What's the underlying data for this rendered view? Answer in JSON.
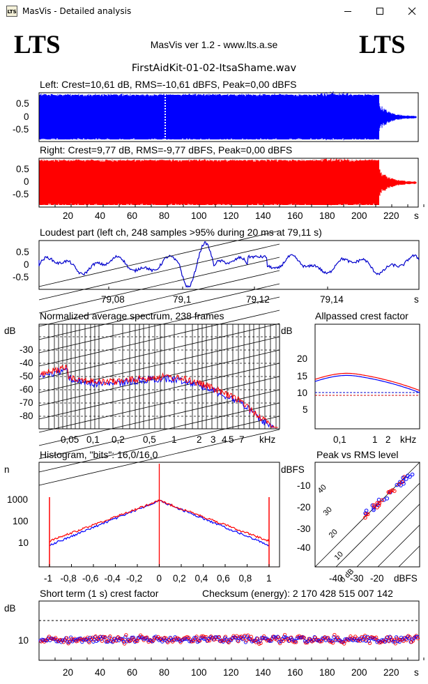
{
  "window": {
    "title": "MasVis - Detailed analysis",
    "minimize_glyph": "minimize-icon",
    "maximize_glyph": "maximize-icon",
    "close_glyph": "close-icon"
  },
  "header": {
    "logo_left": "LTS",
    "logo_right": "LTS",
    "version": "MasVis ver 1.2 - www.lts.a.se",
    "filename": "FirstAidKit-01-02-ItsaShame.wav"
  },
  "waveform_left": {
    "label": "Left: Crest=10,61 dB, RMS=-10,61 dBFS, Peak=0,00 dBFS",
    "color": "#0000ff",
    "yticks": [
      "0.5",
      "0",
      "-0.5"
    ]
  },
  "waveform_right": {
    "label": "Right: Crest=9,77 dB, RMS=-9,77 dBFS, Peak=0,00 dBFS",
    "color": "#ff0000",
    "yticks": [
      "0.5",
      "0",
      "-0.5"
    ]
  },
  "time_axis": {
    "ticks": [
      "20",
      "40",
      "60",
      "80",
      "100",
      "120",
      "140",
      "160",
      "180",
      "200",
      "220"
    ],
    "unit": "s"
  },
  "loudest": {
    "label": "Loudest part (left  ch, 248 samples >95% during 20 ms at 79,11 s)",
    "yticks": [
      "0.5",
      "0",
      "-0.5"
    ],
    "xticks": [
      "79,08",
      "79,1",
      "79,12",
      "79,14"
    ],
    "unit": "s"
  },
  "spectrum": {
    "label": "Normalized average spectrum, 238 frames",
    "ylabel": "dB",
    "yticks": [
      "-30",
      "-40",
      "-50",
      "-60",
      "-70",
      "-80"
    ],
    "xticks": [
      "0,05",
      "0,1",
      "0,2",
      "0,5",
      "1",
      "2",
      "3",
      "4",
      "5",
      "7"
    ],
    "unit": "kHz"
  },
  "allpass": {
    "label": "Allpassed crest factor",
    "ylabel": "dB",
    "yticks": [
      "20",
      "15",
      "10",
      "5"
    ],
    "xticks": [
      "0,1",
      "1",
      "2"
    ],
    "unit": "kHz"
  },
  "histogram": {
    "label": "Histogram, \"bits\": 16,0/16,0",
    "ylabel": "n",
    "yticks": [
      "1000",
      "100",
      "10"
    ],
    "xticks": [
      "-1",
      "-0,8",
      "-0,6",
      "-0,4",
      "-0,2",
      "0",
      "0,2",
      "0,4",
      "0,6",
      "0,8",
      "1"
    ]
  },
  "peakrms": {
    "label": "Peak vs RMS level",
    "ylabel": "dBFS",
    "yticks": [
      "-10",
      "-20",
      "-30",
      "-40"
    ],
    "xticks": [
      "-40",
      "-30",
      "-20"
    ],
    "xunit": "dBFS",
    "diag_labels": [
      "40",
      "30",
      "20",
      "10",
      "0 dB"
    ]
  },
  "shortterm": {
    "label": "Short term (1 s) crest factor",
    "checksum": "Checksum (energy):  2 170 428 515 007 142",
    "ylabel": "dB",
    "yticks": [
      "10"
    ],
    "xticks": [
      "20",
      "40",
      "60",
      "80",
      "100",
      "120",
      "140",
      "160",
      "180",
      "200",
      "220"
    ],
    "unit": "s"
  }
}
